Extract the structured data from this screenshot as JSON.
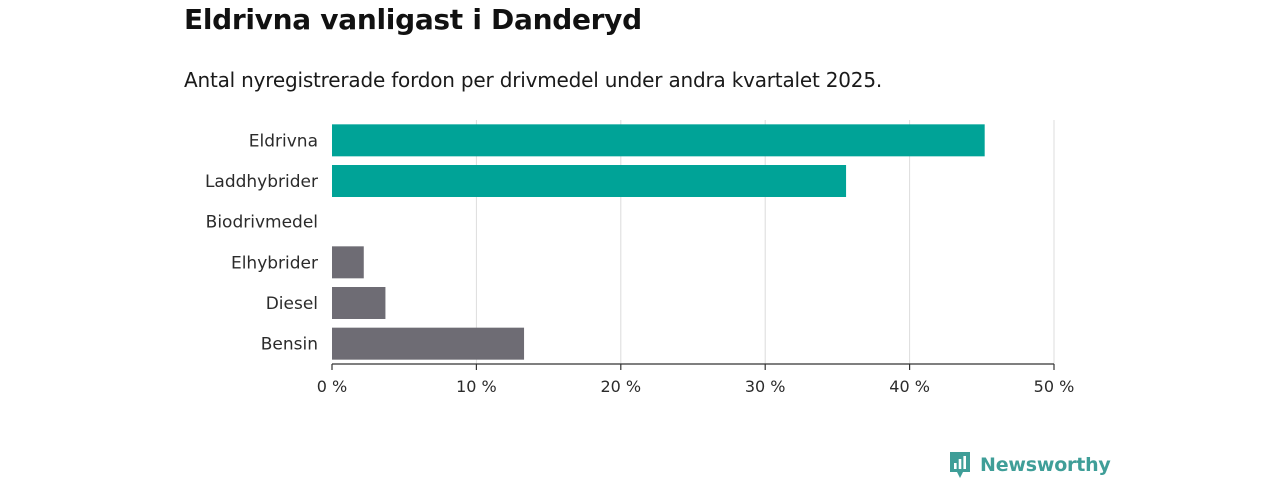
{
  "header": {
    "title": "Eldrivna vanligast i Danderyd",
    "subtitle": "Antal nyregistrerade fordon per drivmedel under andra kvartalet 2025."
  },
  "brand": {
    "name": "Newsworthy",
    "icon": "newsworthy-logo-icon",
    "color": "#3f9e98"
  },
  "colors": {
    "highlight": "#00a397",
    "other": "#6e6c74"
  },
  "chart_data": {
    "type": "bar",
    "orientation": "horizontal",
    "categories": [
      "Eldrivna",
      "Laddhybrider",
      "Biodrivmedel",
      "Elhybrider",
      "Diesel",
      "Bensin"
    ],
    "values": [
      45.2,
      35.6,
      0,
      2.2,
      3.7,
      13.3
    ],
    "highlighted": [
      true,
      true,
      true,
      false,
      false,
      false
    ],
    "xlim": [
      0,
      50
    ],
    "xticks": [
      0,
      10,
      20,
      30,
      40,
      50
    ],
    "xtick_labels": [
      "0 %",
      "10 %",
      "20 %",
      "30 %",
      "40 %",
      "50 %"
    ],
    "grid": true
  }
}
